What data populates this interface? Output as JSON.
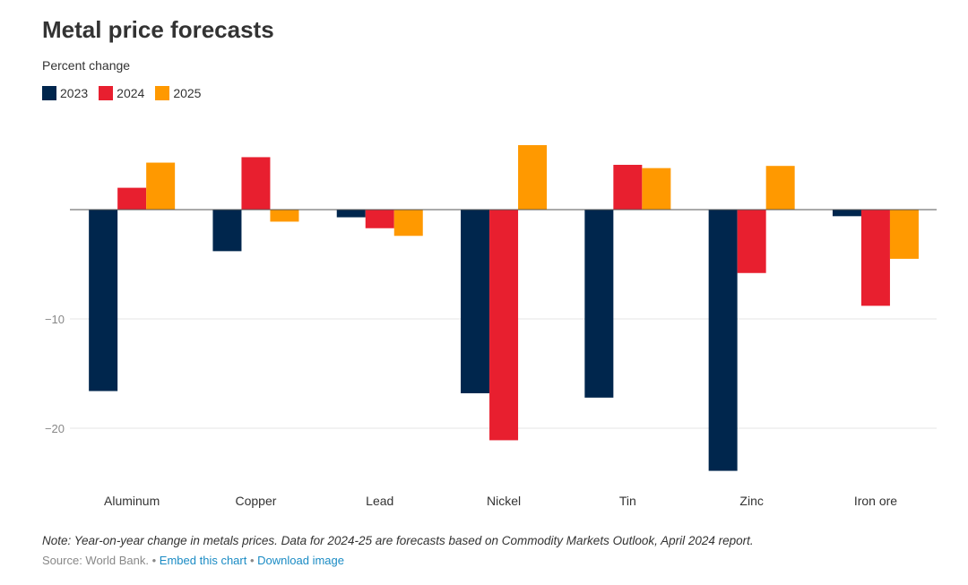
{
  "title": "Metal price forecasts",
  "subtitle": "Percent change",
  "note": "Note: Year-on-year change in metals prices. Data for 2024-25 are forecasts based on Commodity Markets Outlook, April 2024 report.",
  "source": {
    "text": "Source: World Bank.",
    "separator": "•",
    "embed_label": "Embed this chart",
    "download_label": "Download image"
  },
  "colors": {
    "2023": "#00264d",
    "2024": "#e81f2f",
    "2025": "#ff9900",
    "zero_line": "#555555",
    "grid": "#e6e6e6",
    "tick_text": "#888888",
    "category_text": "#333333"
  },
  "chart_data": {
    "type": "bar",
    "title": "Metal price forecasts",
    "ylabel": "Percent change",
    "xlabel": "",
    "categories": [
      "Aluminum",
      "Copper",
      "Lead",
      "Nickel",
      "Tin",
      "Zinc",
      "Iron ore"
    ],
    "series": [
      {
        "name": "2023",
        "values": [
          -16.6,
          -3.8,
          -0.7,
          -16.8,
          -17.2,
          -23.9,
          -0.6
        ]
      },
      {
        "name": "2024",
        "values": [
          2.0,
          4.8,
          -1.7,
          -21.1,
          4.1,
          -5.8,
          -8.8
        ]
      },
      {
        "name": "2025",
        "values": [
          4.3,
          -1.1,
          -2.4,
          5.9,
          3.8,
          4.0,
          -4.5
        ]
      }
    ],
    "ylim": [
      -25,
      8
    ],
    "yticks": [
      {
        "value": -10,
        "label": "−10"
      },
      {
        "value": -20,
        "label": "−20"
      }
    ],
    "grid": true,
    "legend": "top-left"
  }
}
